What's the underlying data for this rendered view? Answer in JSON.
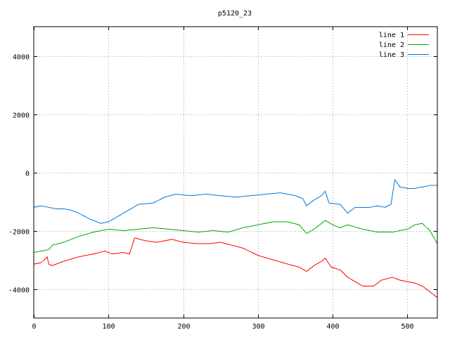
{
  "chart_data": {
    "type": "line",
    "title": "p5120_23",
    "xlabel": "",
    "ylabel": "",
    "xlim": [
      0,
      540
    ],
    "ylim": [
      -5000,
      5000
    ],
    "x_ticks": [
      0,
      100,
      200,
      300,
      400,
      500
    ],
    "x_tick_labels": [
      "0",
      "100",
      "200",
      "300",
      "400",
      "500"
    ],
    "y_ticks": [
      -4000,
      -2000,
      0,
      2000,
      4000
    ],
    "y_tick_labels": [
      "-4000",
      "-2000",
      "0",
      "2000",
      "4000"
    ],
    "grid": true,
    "legend_position": "top-right",
    "series": [
      {
        "name": "line 1",
        "color": "#ff0000",
        "x": [
          0,
          10,
          18,
          20,
          25,
          40,
          60,
          80,
          95,
          105,
          120,
          128,
          135,
          150,
          165,
          185,
          200,
          220,
          235,
          250,
          265,
          280,
          300,
          320,
          340,
          355,
          365,
          375,
          385,
          390,
          398,
          410,
          420,
          440,
          455,
          465,
          480,
          490,
          510,
          520,
          530,
          540
        ],
        "y": [
          -3150,
          -3100,
          -2900,
          -3150,
          -3200,
          -3050,
          -2900,
          -2800,
          -2700,
          -2800,
          -2750,
          -2800,
          -2250,
          -2350,
          -2400,
          -2300,
          -2400,
          -2450,
          -2450,
          -2400,
          -2500,
          -2600,
          -2850,
          -3000,
          -3150,
          -3250,
          -3400,
          -3200,
          -3050,
          -2950,
          -3250,
          -3350,
          -3600,
          -3900,
          -3900,
          -3700,
          -3600,
          -3700,
          -3800,
          -3900,
          -4100,
          -4300
        ]
      },
      {
        "name": "line 2",
        "color": "#00aa00",
        "x": [
          0,
          10,
          20,
          25,
          40,
          60,
          80,
          100,
          120,
          140,
          160,
          180,
          200,
          220,
          240,
          260,
          280,
          300,
          320,
          340,
          355,
          365,
          375,
          390,
          400,
          410,
          420,
          440,
          460,
          480,
          500,
          510,
          520,
          530,
          540
        ],
        "y": [
          -2750,
          -2700,
          -2650,
          -2500,
          -2400,
          -2200,
          -2050,
          -1950,
          -2000,
          -1950,
          -1900,
          -1950,
          -2000,
          -2050,
          -2000,
          -2050,
          -1900,
          -1800,
          -1700,
          -1700,
          -1800,
          -2100,
          -1950,
          -1650,
          -1800,
          -1900,
          -1800,
          -1950,
          -2050,
          -2050,
          -1950,
          -1800,
          -1750,
          -2000,
          -2450
        ]
      },
      {
        "name": "line 3",
        "color": "#0077dd",
        "x": [
          0,
          10,
          20,
          30,
          40,
          50,
          60,
          75,
          90,
          100,
          110,
          120,
          140,
          160,
          175,
          190,
          210,
          230,
          250,
          270,
          290,
          310,
          330,
          350,
          360,
          365,
          375,
          385,
          390,
          395,
          410,
          420,
          430,
          440,
          450,
          460,
          470,
          478,
          483,
          490,
          500,
          510,
          520,
          530,
          540
        ],
        "y": [
          -1200,
          -1150,
          -1200,
          -1250,
          -1250,
          -1300,
          -1400,
          -1600,
          -1750,
          -1700,
          -1550,
          -1400,
          -1100,
          -1050,
          -850,
          -750,
          -800,
          -750,
          -800,
          -850,
          -800,
          -750,
          -700,
          -800,
          -900,
          -1150,
          -950,
          -800,
          -650,
          -1050,
          -1100,
          -1400,
          -1200,
          -1200,
          -1200,
          -1150,
          -1200,
          -1100,
          -250,
          -500,
          -550,
          -550,
          -500,
          -450,
          -450
        ]
      }
    ]
  }
}
